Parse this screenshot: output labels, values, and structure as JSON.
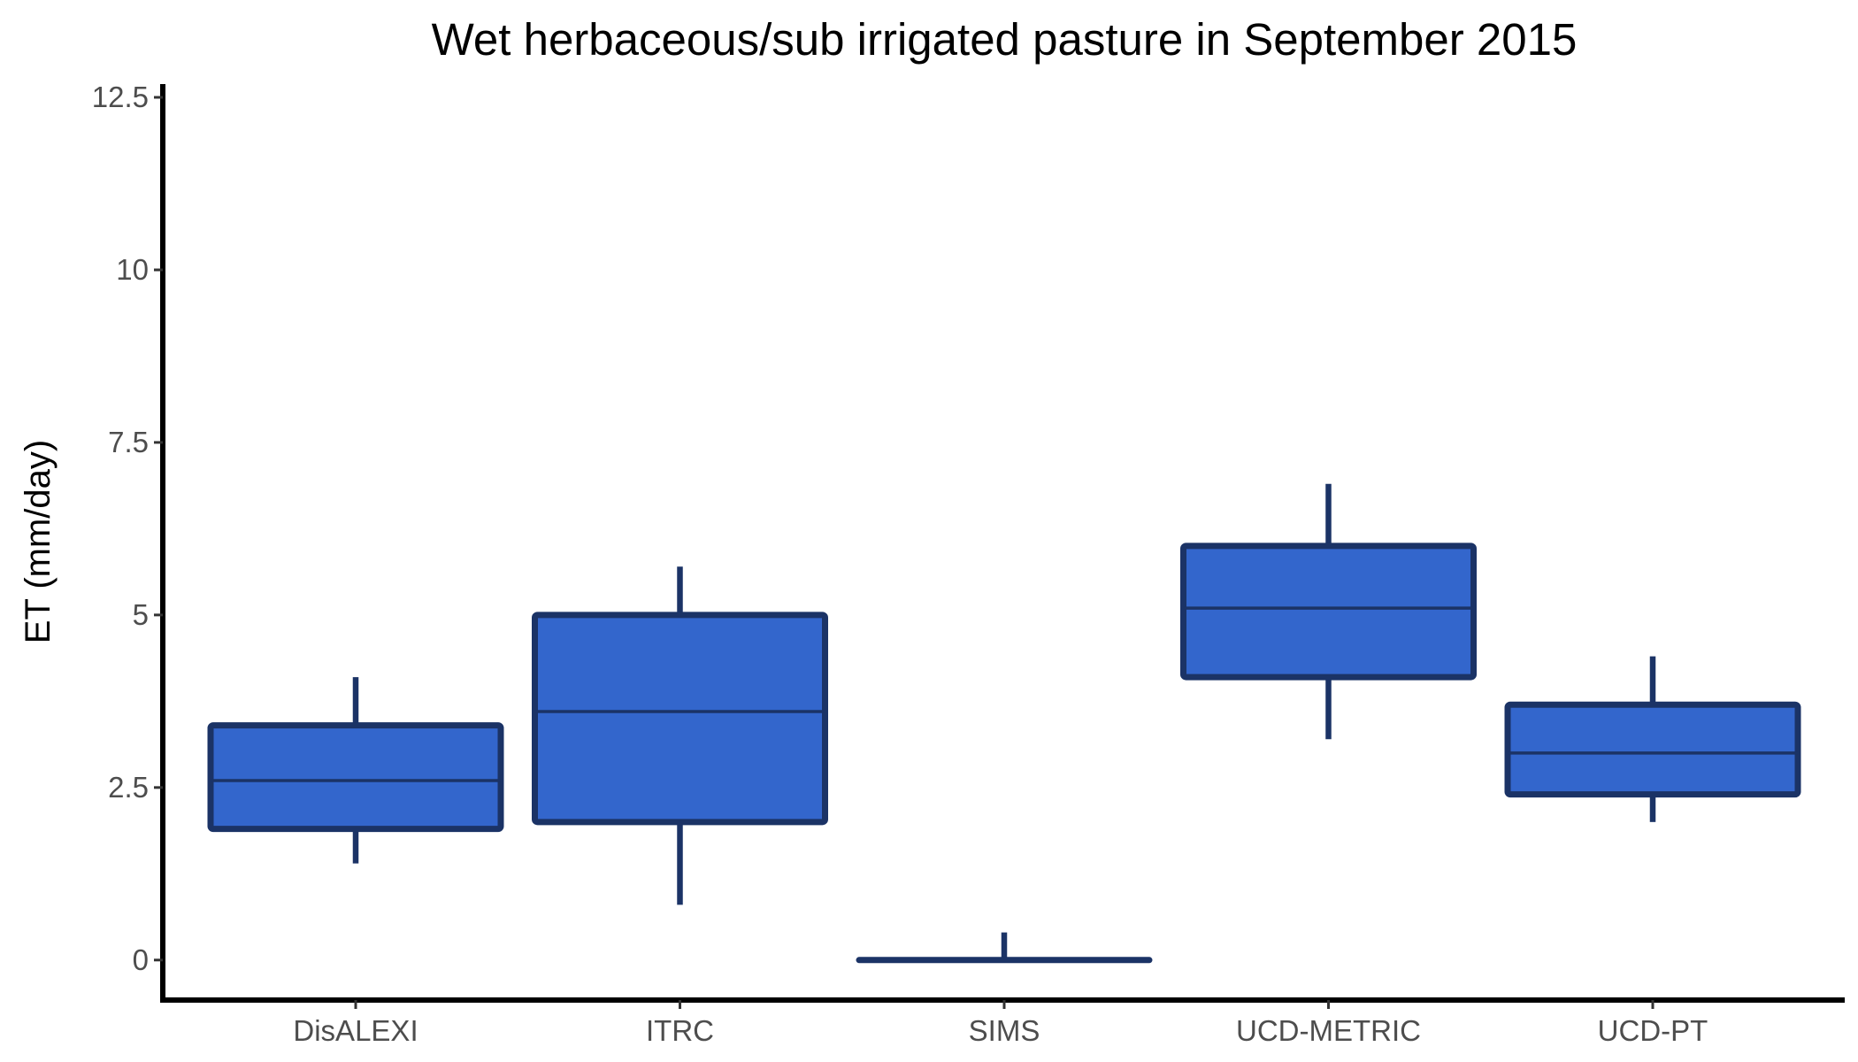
{
  "chart_data": {
    "type": "box",
    "title": "Wet herbaceous/sub irrigated pasture in September 2015",
    "xlabel": "",
    "ylabel": "ET (mm/day)",
    "ylim": [
      -0.6,
      12.6
    ],
    "yticks": [
      0,
      2.5,
      5,
      7.5,
      10,
      12.5
    ],
    "ytick_labels": [
      "0",
      "2.5",
      "5",
      "7.5",
      "10",
      "12.5"
    ],
    "grid": false,
    "legend": "none",
    "colors": {
      "box_fill": "#3366CC",
      "box_outline": "#1B3366",
      "axis": "#000000",
      "tick_text": "#4D4D4D"
    },
    "categories": [
      "DisALEXI",
      "ITRC",
      "SIMS",
      "UCD-METRIC",
      "UCD-PT"
    ],
    "boxes": [
      {
        "category": "DisALEXI",
        "min": 1.4,
        "q1": 1.9,
        "median": 2.6,
        "q3": 3.4,
        "max": 4.1
      },
      {
        "category": "ITRC",
        "min": 0.8,
        "q1": 2.0,
        "median": 3.6,
        "q3": 5.0,
        "max": 5.7
      },
      {
        "category": "SIMS",
        "min": 0.0,
        "q1": 0.0,
        "median": 0.0,
        "q3": 0.0,
        "max": 0.4
      },
      {
        "category": "UCD-METRIC",
        "min": 3.2,
        "q1": 4.1,
        "median": 5.1,
        "q3": 6.0,
        "max": 6.9
      },
      {
        "category": "UCD-PT",
        "min": 2.0,
        "q1": 2.4,
        "median": 3.0,
        "q3": 3.7,
        "max": 4.4
      }
    ]
  }
}
